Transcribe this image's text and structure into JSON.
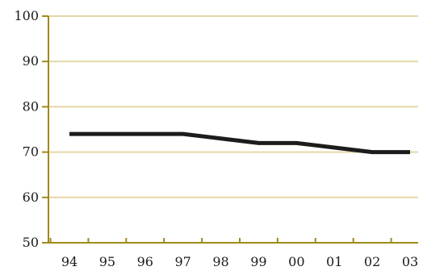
{
  "chart_data": {
    "type": "line",
    "categories": [
      "94",
      "95",
      "96",
      "97",
      "98",
      "99",
      "00",
      "01",
      "02",
      "03"
    ],
    "series": [
      {
        "values": [
          74,
          74,
          74,
          74,
          73,
          72,
          72,
          71,
          70,
          70
        ]
      }
    ],
    "ylim": [
      50,
      100
    ],
    "yticks": [
      50,
      60,
      70,
      80,
      90,
      100
    ],
    "grid": true,
    "legend": "none",
    "colors": {
      "axis": "#a08a1c",
      "grid": "#e3d7a7",
      "line": "#1c1c1c",
      "text": "#1a1a1a"
    }
  }
}
